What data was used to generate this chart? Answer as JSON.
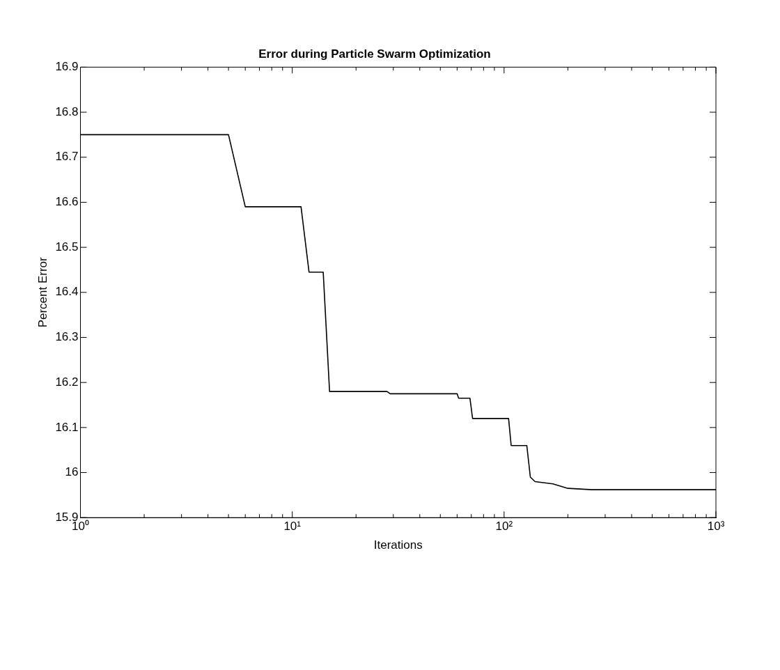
{
  "chart_data": {
    "type": "line",
    "title": "Error during Particle Swarm Optimization",
    "xlabel": "Iterations",
    "ylabel": "Percent Error",
    "log": "x",
    "grid": false,
    "legend": false,
    "marker": "none",
    "line_style": "solid",
    "x": [
      1,
      5,
      6,
      11,
      12,
      14,
      15,
      28,
      29,
      60,
      61,
      69,
      71,
      105,
      108,
      128,
      133,
      140,
      170,
      200,
      260,
      1000
    ],
    "series": [
      {
        "color": "#000000",
        "values": [
          16.75,
          16.75,
          16.59,
          16.59,
          16.445,
          16.445,
          16.18,
          16.18,
          16.175,
          16.175,
          16.165,
          16.165,
          16.12,
          16.12,
          16.06,
          16.06,
          15.99,
          15.98,
          15.975,
          15.965,
          15.962,
          15.962
        ]
      }
    ],
    "xlim": [
      1,
      1000
    ],
    "xticks": [
      {
        "value": 1,
        "label": "10⁰"
      },
      {
        "value": 2,
        "label": null
      },
      {
        "value": 3,
        "label": null
      },
      {
        "value": 4,
        "label": null
      },
      {
        "value": 5,
        "label": null
      },
      {
        "value": 6,
        "label": null
      },
      {
        "value": 7,
        "label": null
      },
      {
        "value": 8,
        "label": null
      },
      {
        "value": 9,
        "label": null
      },
      {
        "value": 10,
        "label": "10¹"
      },
      {
        "value": 20,
        "label": null
      },
      {
        "value": 30,
        "label": null
      },
      {
        "value": 40,
        "label": null
      },
      {
        "value": 50,
        "label": null
      },
      {
        "value": 60,
        "label": null
      },
      {
        "value": 70,
        "label": null
      },
      {
        "value": 80,
        "label": null
      },
      {
        "value": 90,
        "label": null
      },
      {
        "value": 100,
        "label": "10²"
      },
      {
        "value": 200,
        "label": null
      },
      {
        "value": 300,
        "label": null
      },
      {
        "value": 400,
        "label": null
      },
      {
        "value": 500,
        "label": null
      },
      {
        "value": 600,
        "label": null
      },
      {
        "value": 700,
        "label": null
      },
      {
        "value": 800,
        "label": null
      },
      {
        "value": 900,
        "label": null
      },
      {
        "value": 1000,
        "label": "10³"
      }
    ],
    "ylim": [
      15.9,
      16.9
    ],
    "yticks": [
      15.9,
      16,
      16.1,
      16.2,
      16.3,
      16.4,
      16.5,
      16.6,
      16.7,
      16.8,
      16.9
    ]
  }
}
